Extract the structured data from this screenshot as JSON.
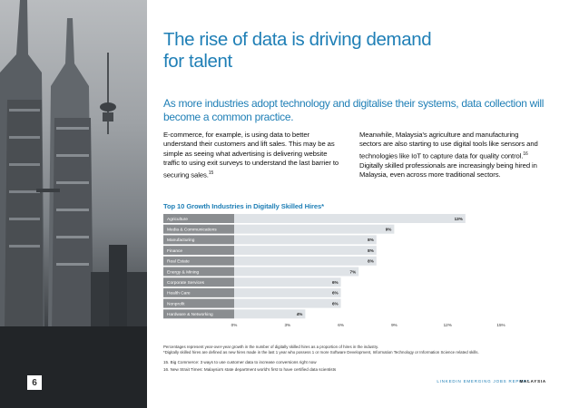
{
  "page_number": "6",
  "title": "The rise of data is driving demand for talent",
  "subtitle": "As more industries adopt technology and digitalise their systems, data collection will become a common practice.",
  "body_left": "E-commerce, for example, is using data to better understand their customers and lift sales. This may be as simple as seeing what advertising is delivering website traffic to using exit surveys to understand the last barrier to securing sales.",
  "body_left_ref": "15",
  "body_right_a": "Meanwhile, Malaysia's agriculture and manufacturing sectors are also starting to use digital tools like sensors and technologies like IoT to capture data for quality control.",
  "body_right_ref": "16",
  "body_right_b": " Digitally skilled professionals are increasingly being hired in Malaysia, even across more traditional sectors.",
  "chart_data": {
    "type": "bar",
    "orientation": "horizontal",
    "title": "Top 10 Growth Industries in Digitally Skilled Hires*",
    "categories": [
      "Agriculture",
      "Media & Communications",
      "Manufacturing",
      "Finance",
      "Real Estate",
      "Energy & Mining",
      "Corporate Services",
      "Health Care",
      "Nonprofit",
      "Hardware & Networking"
    ],
    "values": [
      13,
      9,
      8,
      8,
      8,
      7,
      6,
      6,
      6,
      4
    ],
    "value_labels": [
      "13%",
      "9%",
      "8%",
      "8%",
      "8%",
      "7%",
      "6%",
      "6%",
      "6%",
      "4%"
    ],
    "xticks": [
      "0%",
      "3%",
      "6%",
      "9%",
      "12%",
      "15%"
    ],
    "xlim": [
      0,
      15
    ],
    "label_panel_color": "#8a8d90",
    "bar_color": "#dfe3e7",
    "accent": "#1f7fb6"
  },
  "note_1": "Percentages represent year-over-year growth in the number of digitally skilled hires as a proportion of hires in the industry.",
  "note_2": "*Digitally skilled hires are defined as new hires made in the last 1 year who possess 1 or more Software Development, Information Technology or Information Science related skills.",
  "ref_15": "15. Big Commerce: 3 ways to use customer data to increase conversions right now",
  "ref_16": "16. New Strait Times: Malaysia's state department world's first to have certified data scientists",
  "footer_report": "LINKEDIN EMERGING JOBS REPORT",
  "footer_country": "MALAYSIA"
}
